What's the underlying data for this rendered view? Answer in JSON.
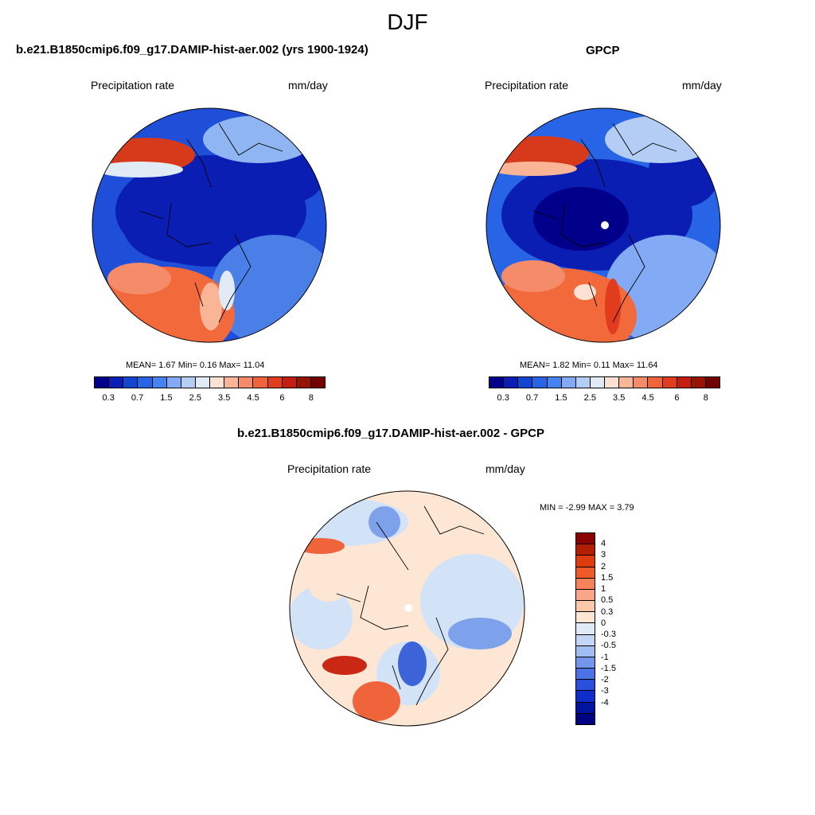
{
  "figure": {
    "season": "DJF"
  },
  "panels": {
    "model": {
      "title": "b.e21.B1850cmip6.f09_g17.DAMIP-hist-aer.002 (yrs 1900-1924)",
      "left_label": "Precipitation rate",
      "right_label": "mm/day",
      "stats": {
        "mean": "MEAN=   1.67  Min=   0.16  Max=  11.04"
      }
    },
    "obs": {
      "title": "GPCP",
      "left_label": "Precipitation rate",
      "right_label": "mm/day",
      "stats": {
        "mean": "MEAN=   1.82  Min=   0.11  Max=  11.64"
      }
    },
    "diff": {
      "title": "b.e21.B1850cmip6.f09_g17.DAMIP-hist-aer.002 - GPCP",
      "left_label": "Precipitation rate",
      "right_label": "mm/day",
      "stats": {
        "minmax": "MIN =  -2.99 MAX =   3.79"
      }
    }
  },
  "colorbar_abs": {
    "colors": [
      "#00008b",
      "#0a1eb4",
      "#1446d2",
      "#2864e6",
      "#4682f0",
      "#82aaf5",
      "#b4cdf5",
      "#e1ebf5",
      "#fde1d2",
      "#fab496",
      "#f58c69",
      "#f0643c",
      "#e13c1e",
      "#c31e0f",
      "#961400",
      "#730000"
    ],
    "tick_labels": [
      "0.3",
      "0.7",
      "1.5",
      "2.5",
      "3.5",
      "4.5",
      "6",
      "8"
    ]
  },
  "colorbar_diff": {
    "colors": [
      "#8b0000",
      "#b41e00",
      "#dc3c0f",
      "#f05a28",
      "#f5825a",
      "#faa587",
      "#fcc8aa",
      "#fde6d4",
      "#e1ebf8",
      "#c3d7f5",
      "#a0bef0",
      "#7396eb",
      "#4b73e6",
      "#2850dc",
      "#0f2dc8",
      "#0014a0",
      "#000082"
    ],
    "tick_labels": [
      "4",
      "3",
      "2",
      "1.5",
      "1",
      "0.5",
      "0.3",
      "0",
      "-0.3",
      "-0.5",
      "-1",
      "-1.5",
      "-2",
      "-3",
      "-4"
    ]
  },
  "map_palette": {
    "abs": {
      "deep": "#0a1eb4",
      "mid": "#1f4fd8",
      "light": "#4a7fe8",
      "pale": "#8fb6f2",
      "warm": "#f26a3c",
      "hot": "#d73a1a",
      "ocean_mid": "#3366e0"
    },
    "diff": {
      "base": "#fde6d4",
      "pale_blue": "#d3e3f7",
      "blue": "#7da1ea",
      "dblue": "#3c63d8",
      "red": "#f0643c",
      "dred": "#c82814"
    }
  }
}
